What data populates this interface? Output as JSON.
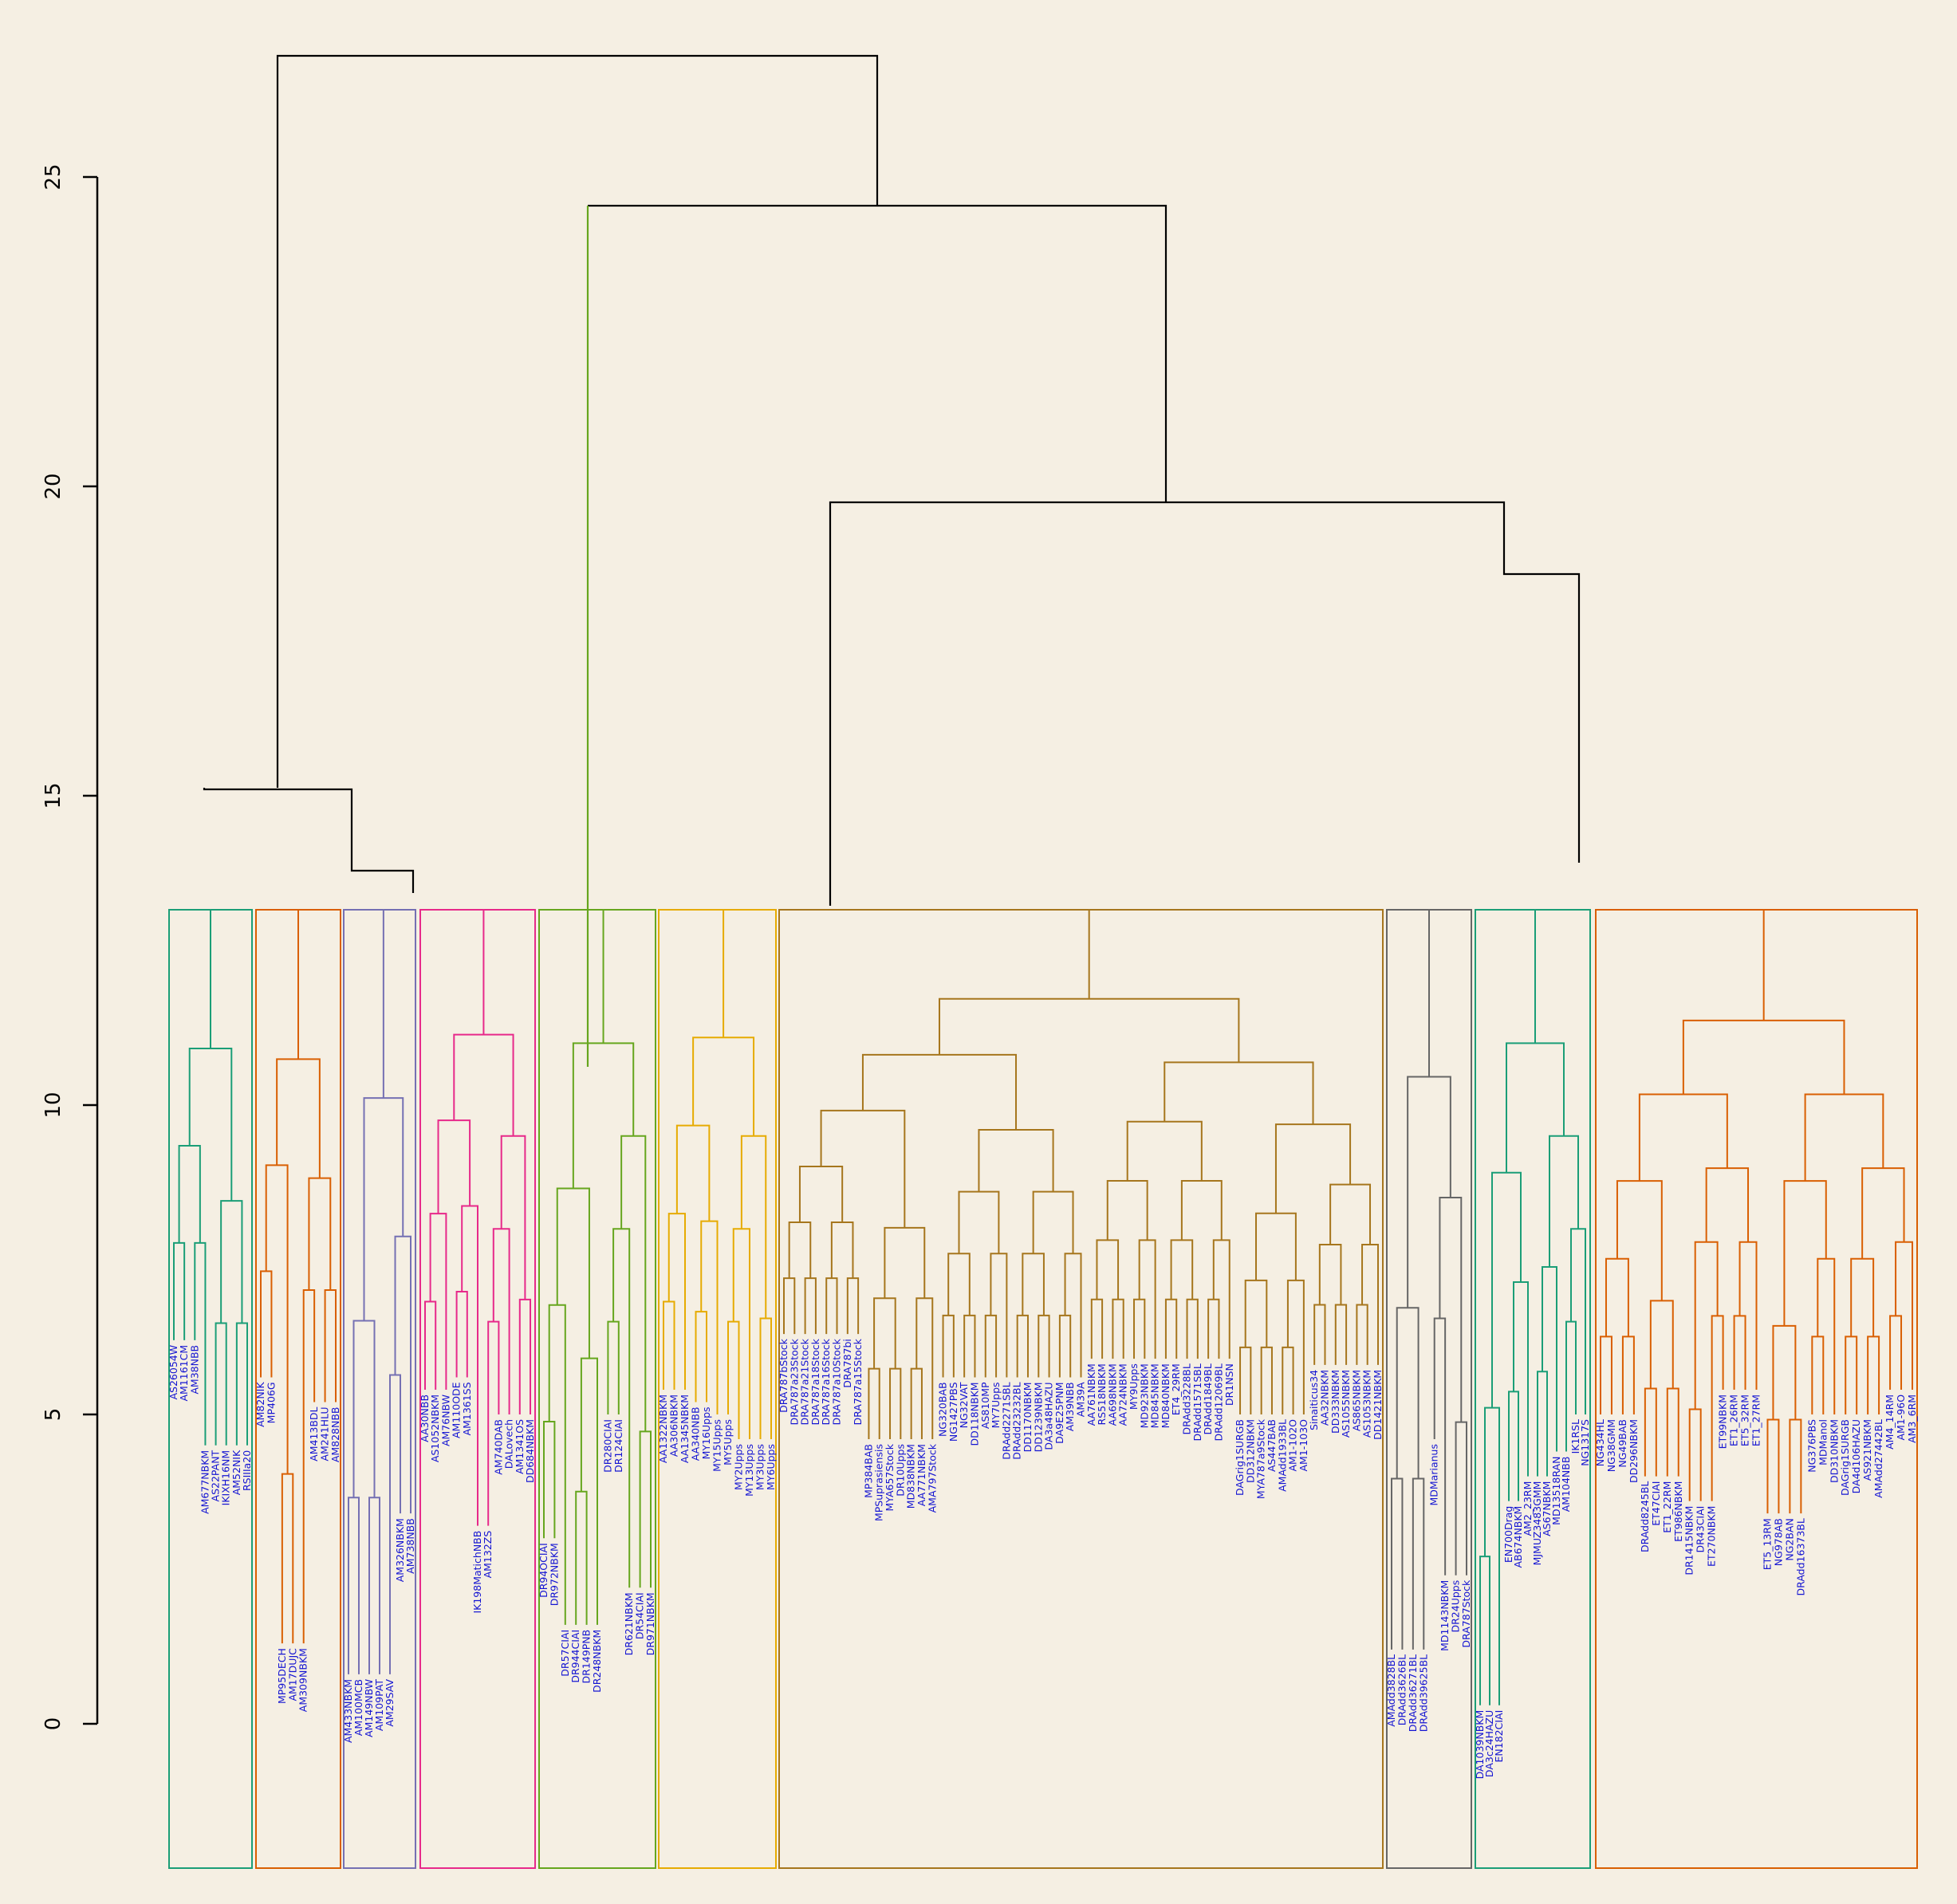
{
  "chart_data": {
    "type": "dendrogram",
    "title": "",
    "xlabel": "",
    "ylabel": "",
    "ylim": [
      0,
      27
    ],
    "yticks": [
      0,
      5,
      10,
      15,
      20,
      25
    ],
    "grid": false,
    "legend": "none",
    "background": "#f5efe3",
    "axis_color": "#000000",
    "label_color": "#1414d2",
    "groups": [
      {
        "color": "#1b9e77",
        "leaf_heights": [
          6.2,
          4.5,
          4.5
        ],
        "leaves": [
          "AS26054W",
          "AM1161CM",
          "AM38NBB",
          "AM677NBKM",
          "AS22PANT",
          "IKIXH16NM",
          "AM52NIK",
          "RSIIIa20"
        ]
      },
      {
        "color": "#d95f02",
        "leaf_heights": [
          5.6,
          1.3,
          1.3,
          5.2,
          5.2
        ],
        "leaves": [
          "AM82NIK",
          "MP406G",
          "MP95DECH",
          "AM17DUJC",
          "AM309NBKM",
          "AM413BDL",
          "AM241HLU",
          "AM828NBB"
        ]
      },
      {
        "color": "#7570b3",
        "leaf_heights": [
          0.8,
          0.8,
          3.4
        ],
        "leaves": [
          "AM433NBKM",
          "AM100MCB",
          "AM149NBW",
          "AM109PAT",
          "AM29SAV",
          "AM326NBKM",
          "AM738NBB"
        ]
      },
      {
        "color": "#e7298a",
        "leaf_heights": [
          5.4,
          5.6,
          3.2,
          5.0,
          5.0
        ],
        "leaves": [
          "AA30NBB",
          "AS1052NBKM",
          "AM76NBW",
          "AM110ODE",
          "AM1361SS",
          "IK198MatichNBB",
          "AM132ZS",
          "AM740DAB",
          "DALovech",
          "AM1341OS",
          "DD684NBKM"
        ]
      },
      {
        "color": "#66a61e",
        "leaf_heights": [
          3.0,
          1.6,
          1.6,
          5.0,
          2.2,
          2.2
        ],
        "leaves": [
          "DR94OCIAI",
          "DR972NBKM",
          "DR57CIAI",
          "DR944CIAI",
          "DR149PNB",
          "DR248NBKM",
          "DR280CIAI",
          "DR124CIAI",
          "DR621NBKM",
          "DR54CIAI",
          "DR971NBKM"
        ]
      },
      {
        "color": "#e6ab02",
        "leaf_heights": [
          5.4,
          5.2,
          5.0,
          4.6,
          4.6
        ],
        "leaves": [
          "AA1322NBKM",
          "AA306NBKM",
          "AA1345NBKM",
          "AA340NBB",
          "MY16Upps",
          "MY15Upps",
          "MY5Upps",
          "MY2Upps",
          "MY13Upps",
          "MY3Upps",
          "MY6Upps"
        ]
      },
      {
        "color": "#a6761d",
        "leaf_heights": [
          6.3,
          4.6,
          5.6,
          5.6,
          5.9,
          5.9,
          5.0,
          5.8
        ],
        "leaves": [
          "DRA787bStock",
          "DRA787a23Stock",
          "DRA787a21Stock",
          "DRA787a18Stock",
          "DRA787a16Stock",
          "DRA787a10Stock",
          "DRA787bi",
          "DRA787a15Stock",
          "MP384BAB",
          "MPSuprasiensis",
          "MYA657Stock",
          "DR10Upps",
          "MD838NBKM",
          "AA771NBKM",
          "AMA797Stock",
          "NG320BAB",
          "NG1427PBS",
          "NG32VAT",
          "DD118NBKM",
          "AS810MP",
          "MY7Upps",
          "DRAdd2271SBL",
          "DRAdd23232BL",
          "DD1170NBKM",
          "DD1239NBKM",
          "DA3a48HAZU",
          "DA9E25PNM",
          "AM39NBB",
          "AM39A",
          "AA761NBKM",
          "RS518NBKM",
          "AA698NBKM",
          "AA724NBKM",
          "MY9Upps",
          "MD923NBKM",
          "MD845NBKM",
          "MD840NBKM",
          "ET4_29RM",
          "DRAdd3228BL",
          "DRAdd1571SBL",
          "DRAdd1849BL",
          "DRAdd12069BL",
          "DR1NSN",
          "DAGrig1SURGB",
          "DD312NBKM",
          "MYA787a9Stock",
          "AS447BAB",
          "AMAdd1933BL",
          "AM1-102O",
          "AM1-103O",
          "Sinaiticus34",
          "AA32NBKM",
          "DD333NBKM",
          "AS1055NBKM",
          "AS865NBKM",
          "AS1053NBKM",
          "DD1421NBKM"
        ]
      },
      {
        "color": "#666666",
        "leaf_heights": [
          1.2,
          1.2,
          4.6,
          2.4,
          2.4
        ],
        "leaves": [
          "AMAdd3828BL",
          "DRAdd3626BL",
          "DRAdd36271BL",
          "DRAdd39625BL",
          "MDMarianus",
          "MD1143NBKM",
          "DR24Upps",
          "DRA787Stock"
        ]
      },
      {
        "color": "#1b9e77",
        "leaf_heights": [
          0.3,
          3.6,
          4.0,
          4.4,
          5.0
        ],
        "leaves": [
          "DA1039NBKM",
          "DA3c24HAZU",
          "EN182CIAI",
          "EN700Drag",
          "AB674NBKM",
          "AM2_23RM",
          "MJMUZ3483GMM",
          "AS67NBKM",
          "MD13518RAN",
          "AM104NBB",
          "IK1RSL",
          "NG1317S"
        ]
      },
      {
        "color": "#d95f02",
        "leaf_heights": [
          5.0,
          4.0,
          3.6,
          5.4,
          3.4,
          5.0,
          5.0,
          5.4
        ],
        "leaves": [
          "NG434HL",
          "NG38GMM",
          "NG49BAB",
          "DD296NBKM",
          "DRAdd8245BL",
          "ET47CIAI",
          "ET1_22RM",
          "ET986NBKM",
          "DR1415NBKM",
          "DR43CIAI",
          "ET270NBKM",
          "ET99NBKM",
          "ET1_26RM",
          "ET5_32RM",
          "ET1_27RM",
          "ET5_13RM",
          "NG978AB",
          "NG2BAN",
          "DRAdd16373BL",
          "NG376PBS",
          "MDManol",
          "DD310NBKM",
          "DAGrig1SURGB",
          "DA4d106HAZU",
          "AS921NBKM",
          "AMAdd27442BL",
          "AM4_14RM",
          "AM1-96O",
          "AM3_6RM"
        ]
      }
    ]
  }
}
